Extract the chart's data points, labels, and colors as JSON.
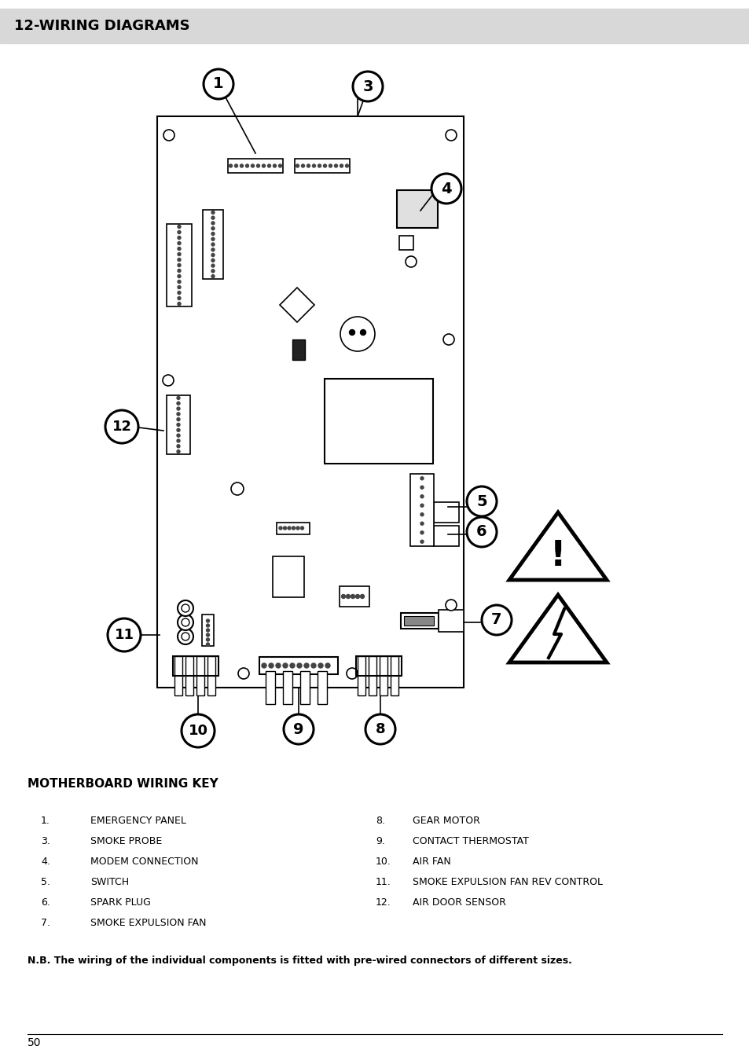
{
  "title": "12-WIRING DIAGRAMS",
  "title_bg": "#d8d8d8",
  "page_number": "50",
  "wiring_key_title": "MOTHERBOARD WIRING KEY",
  "wiring_key_left": [
    [
      "1.",
      "EMERGENCY PANEL"
    ],
    [
      "3.",
      "SMOKE PROBE"
    ],
    [
      "4.",
      "MODEM CONNECTION"
    ],
    [
      "5.",
      "SWITCH"
    ],
    [
      "6.",
      "SPARK PLUG"
    ],
    [
      "7.",
      "SMOKE EXPULSION FAN"
    ]
  ],
  "wiring_key_right": [
    [
      "8.",
      "GEAR MOTOR"
    ],
    [
      "9.",
      "CONTACT THERMOSTAT"
    ],
    [
      "10.",
      "AIR FAN"
    ],
    [
      "11.",
      "SMOKE EXPULSION FAN REV CONTROL"
    ],
    [
      "12.",
      "AIR DOOR SENSOR"
    ]
  ],
  "nb_text": "N.B. The wiring of the individual components is fitted with pre-wired connectors of different sizes.",
  "board_color": "#ffffff",
  "board_border": "#000000"
}
